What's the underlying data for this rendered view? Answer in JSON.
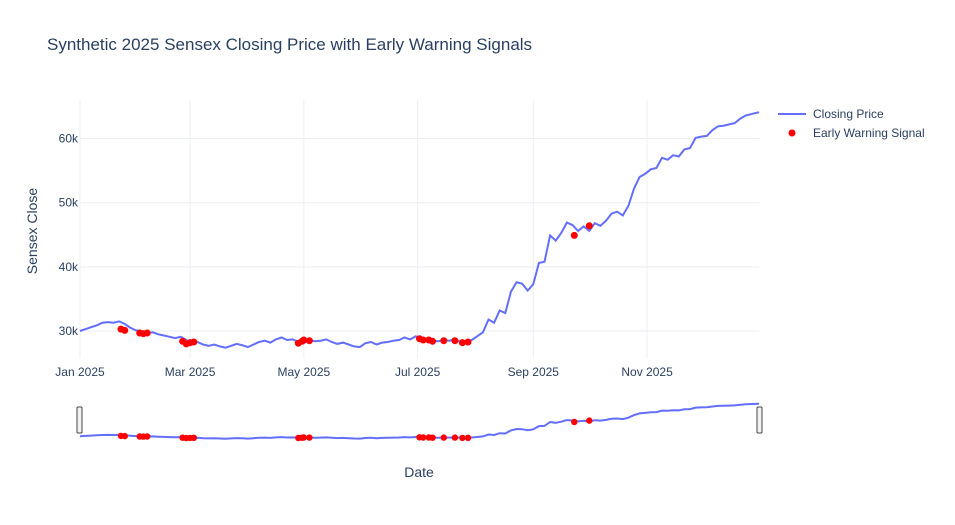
{
  "colors": {
    "line": "#636efa",
    "marker": "#ff0000",
    "text": "#2a3f5f",
    "grid": "#ebeef3"
  },
  "chart_data": {
    "type": "line",
    "title": "Synthetic 2025 Sensex Closing Price with Early Warning Signals",
    "xlabel": "Date",
    "ylabel": "Sensex Close",
    "x_ticks": [
      {
        "date": "2025-01-01",
        "label": "Jan 2025"
      },
      {
        "date": "2025-03-01",
        "label": "Mar 2025"
      },
      {
        "date": "2025-05-01",
        "label": "May 2025"
      },
      {
        "date": "2025-07-01",
        "label": "Jul 2025"
      },
      {
        "date": "2025-09-01",
        "label": "Sep 2025"
      },
      {
        "date": "2025-11-01",
        "label": "Nov 2025"
      }
    ],
    "y_ticks": [
      {
        "value": 30000,
        "label": "30k"
      },
      {
        "value": 40000,
        "label": "40k"
      },
      {
        "value": 50000,
        "label": "50k"
      },
      {
        "value": 60000,
        "label": "60k"
      }
    ],
    "xlim": [
      "2025-01-01",
      "2025-12-31"
    ],
    "ylim": [
      25800,
      66000
    ],
    "grid": true,
    "legend_position": "top-right",
    "range_slider": true,
    "series": [
      {
        "name": "Closing Price",
        "kind": "line",
        "points": [
          [
            "2025-01-01",
            30000
          ],
          [
            "2025-01-04",
            30300
          ],
          [
            "2025-01-07",
            30600
          ],
          [
            "2025-01-10",
            30900
          ],
          [
            "2025-01-13",
            31300
          ],
          [
            "2025-01-16",
            31400
          ],
          [
            "2025-01-19",
            31300
          ],
          [
            "2025-01-22",
            31500
          ],
          [
            "2025-01-25",
            31100
          ],
          [
            "2025-01-28",
            30500
          ],
          [
            "2025-01-31",
            30100
          ],
          [
            "2025-02-03",
            30000
          ],
          [
            "2025-02-06",
            29700
          ],
          [
            "2025-02-09",
            29800
          ],
          [
            "2025-02-12",
            29500
          ],
          [
            "2025-02-15",
            29300
          ],
          [
            "2025-02-18",
            29100
          ],
          [
            "2025-02-21",
            28900
          ],
          [
            "2025-02-24",
            29100
          ],
          [
            "2025-02-27",
            28600
          ],
          [
            "2025-03-02",
            28200
          ],
          [
            "2025-03-05",
            28300
          ],
          [
            "2025-03-08",
            27900
          ],
          [
            "2025-03-11",
            27700
          ],
          [
            "2025-03-14",
            27900
          ],
          [
            "2025-03-17",
            27600
          ],
          [
            "2025-03-20",
            27400
          ],
          [
            "2025-03-23",
            27700
          ],
          [
            "2025-03-26",
            28000
          ],
          [
            "2025-03-29",
            27800
          ],
          [
            "2025-04-01",
            27500
          ],
          [
            "2025-04-04",
            27900
          ],
          [
            "2025-04-07",
            28300
          ],
          [
            "2025-04-10",
            28500
          ],
          [
            "2025-04-13",
            28200
          ],
          [
            "2025-04-16",
            28700
          ],
          [
            "2025-04-19",
            29000
          ],
          [
            "2025-04-22",
            28600
          ],
          [
            "2025-04-25",
            28700
          ],
          [
            "2025-04-28",
            28300
          ],
          [
            "2025-05-01",
            28100
          ],
          [
            "2025-05-04",
            28600
          ],
          [
            "2025-05-07",
            28400
          ],
          [
            "2025-05-10",
            28500
          ],
          [
            "2025-05-13",
            28700
          ],
          [
            "2025-05-16",
            28300
          ],
          [
            "2025-05-19",
            28000
          ],
          [
            "2025-05-22",
            28200
          ],
          [
            "2025-05-25",
            27900
          ],
          [
            "2025-05-28",
            27600
          ],
          [
            "2025-05-31",
            27500
          ],
          [
            "2025-06-03",
            28100
          ],
          [
            "2025-06-06",
            28300
          ],
          [
            "2025-06-09",
            27900
          ],
          [
            "2025-06-12",
            28200
          ],
          [
            "2025-06-15",
            28300
          ],
          [
            "2025-06-18",
            28500
          ],
          [
            "2025-06-21",
            28600
          ],
          [
            "2025-06-24",
            29000
          ],
          [
            "2025-06-27",
            28700
          ],
          [
            "2025-06-30",
            29200
          ],
          [
            "2025-07-03",
            28800
          ],
          [
            "2025-07-06",
            28600
          ],
          [
            "2025-07-09",
            28500
          ],
          [
            "2025-07-12",
            28400
          ],
          [
            "2025-07-15",
            28600
          ],
          [
            "2025-07-18",
            28500
          ],
          [
            "2025-07-21",
            28700
          ],
          [
            "2025-07-24",
            28300
          ],
          [
            "2025-07-27",
            28100
          ],
          [
            "2025-07-30",
            28600
          ],
          [
            "2025-08-02",
            29200
          ],
          [
            "2025-08-05",
            29800
          ],
          [
            "2025-08-08",
            31800
          ],
          [
            "2025-08-11",
            31300
          ],
          [
            "2025-08-14",
            33200
          ],
          [
            "2025-08-17",
            32800
          ],
          [
            "2025-08-20",
            36100
          ],
          [
            "2025-08-23",
            37600
          ],
          [
            "2025-08-26",
            37400
          ],
          [
            "2025-08-29",
            36300
          ],
          [
            "2025-09-01",
            37300
          ],
          [
            "2025-09-04",
            40600
          ],
          [
            "2025-09-07",
            40800
          ],
          [
            "2025-09-10",
            44900
          ],
          [
            "2025-09-13",
            44100
          ],
          [
            "2025-09-16",
            45300
          ],
          [
            "2025-09-19",
            46900
          ],
          [
            "2025-09-22",
            46500
          ],
          [
            "2025-09-25",
            45600
          ],
          [
            "2025-09-28",
            46300
          ],
          [
            "2025-10-01",
            45600
          ],
          [
            "2025-10-04",
            46800
          ],
          [
            "2025-10-07",
            46400
          ],
          [
            "2025-10-10",
            47200
          ],
          [
            "2025-10-13",
            48300
          ],
          [
            "2025-10-16",
            48600
          ],
          [
            "2025-10-19",
            48000
          ],
          [
            "2025-10-22",
            49500
          ],
          [
            "2025-10-25",
            52200
          ],
          [
            "2025-10-28",
            54000
          ],
          [
            "2025-10-31",
            54500
          ],
          [
            "2025-11-03",
            55200
          ],
          [
            "2025-11-06",
            55400
          ],
          [
            "2025-11-09",
            57000
          ],
          [
            "2025-11-12",
            56700
          ],
          [
            "2025-11-15",
            57400
          ],
          [
            "2025-11-18",
            57200
          ],
          [
            "2025-11-21",
            58300
          ],
          [
            "2025-11-24",
            58500
          ],
          [
            "2025-11-27",
            60100
          ],
          [
            "2025-11-30",
            60300
          ],
          [
            "2025-12-03",
            60400
          ],
          [
            "2025-12-06",
            61300
          ],
          [
            "2025-12-09",
            61900
          ],
          [
            "2025-12-12",
            62000
          ],
          [
            "2025-12-15",
            62200
          ],
          [
            "2025-12-18",
            62400
          ],
          [
            "2025-12-21",
            63100
          ],
          [
            "2025-12-24",
            63600
          ],
          [
            "2025-12-31",
            64100
          ]
        ]
      },
      {
        "name": "Early Warning Signal",
        "kind": "markers",
        "points": [
          [
            "2025-01-23",
            30300
          ],
          [
            "2025-01-25",
            30100
          ],
          [
            "2025-02-02",
            29700
          ],
          [
            "2025-02-04",
            29600
          ],
          [
            "2025-02-06",
            29700
          ],
          [
            "2025-02-25",
            28400
          ],
          [
            "2025-02-27",
            28000
          ],
          [
            "2025-03-01",
            28200
          ],
          [
            "2025-03-03",
            28300
          ],
          [
            "2025-04-28",
            28100
          ],
          [
            "2025-04-30",
            28400
          ],
          [
            "2025-05-01",
            28600
          ],
          [
            "2025-05-04",
            28500
          ],
          [
            "2025-07-02",
            28800
          ],
          [
            "2025-07-04",
            28600
          ],
          [
            "2025-07-07",
            28600
          ],
          [
            "2025-07-09",
            28400
          ],
          [
            "2025-07-15",
            28500
          ],
          [
            "2025-07-21",
            28500
          ],
          [
            "2025-07-25",
            28200
          ],
          [
            "2025-07-28",
            28300
          ],
          [
            "2025-09-23",
            44900
          ],
          [
            "2025-10-01",
            46400
          ]
        ]
      }
    ]
  }
}
